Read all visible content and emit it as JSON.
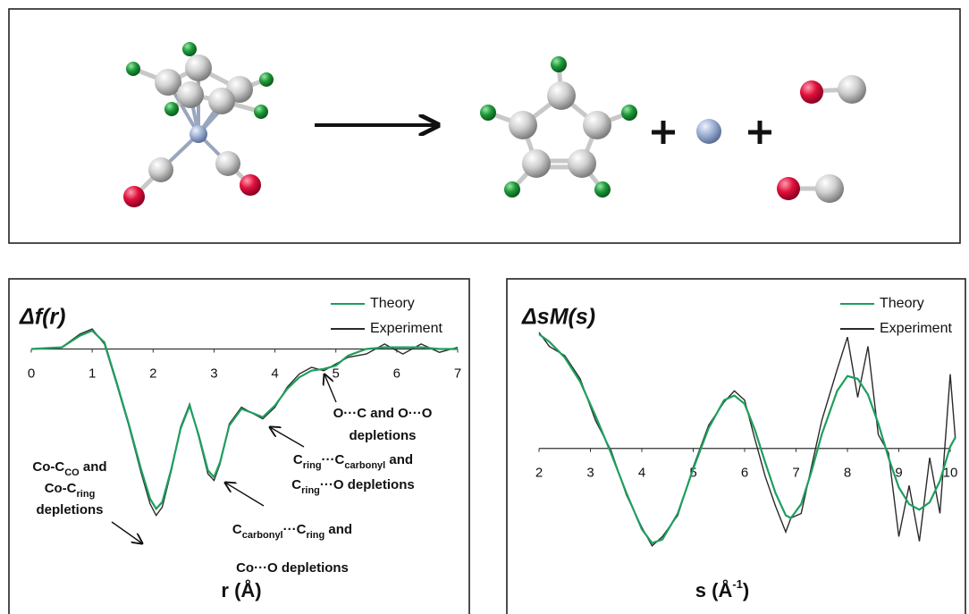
{
  "chart_data": [
    {
      "type": "line",
      "y_label": "Δf(r)",
      "x_label": [
        {
          "text": "r (Å)"
        }
      ],
      "x": [
        0,
        0.5,
        0.8,
        1.0,
        1.2,
        1.4,
        1.6,
        1.8,
        1.95,
        2.05,
        2.15,
        2.3,
        2.45,
        2.6,
        2.75,
        2.9,
        3.0,
        3.1,
        3.25,
        3.45,
        3.6,
        3.8,
        4.0,
        4.2,
        4.4,
        4.6,
        4.8,
        5.0,
        5.2,
        5.5,
        5.8,
        6.1,
        6.4,
        6.7,
        7.0
      ],
      "series": [
        {
          "name": "Theory",
          "color": "#1e9e5e",
          "values": [
            0,
            0.01,
            0.08,
            0.11,
            0.04,
            -0.2,
            -0.45,
            -0.72,
            -0.9,
            -0.96,
            -0.92,
            -0.72,
            -0.48,
            -0.34,
            -0.52,
            -0.73,
            -0.77,
            -0.68,
            -0.46,
            -0.36,
            -0.38,
            -0.41,
            -0.34,
            -0.24,
            -0.17,
            -0.13,
            -0.12,
            -0.1,
            -0.04,
            0.0,
            0.01,
            0.01,
            0.01,
            0.0,
            0.0
          ]
        },
        {
          "name": "Experiment",
          "color": "#2a2a2a",
          "values": [
            0,
            0.01,
            0.09,
            0.12,
            0.03,
            -0.21,
            -0.46,
            -0.74,
            -0.93,
            -1.0,
            -0.95,
            -0.73,
            -0.47,
            -0.33,
            -0.53,
            -0.75,
            -0.79,
            -0.69,
            -0.45,
            -0.35,
            -0.38,
            -0.42,
            -0.35,
            -0.23,
            -0.15,
            -0.11,
            -0.13,
            -0.09,
            -0.05,
            -0.03,
            0.03,
            -0.03,
            0.03,
            -0.02,
            0.01
          ]
        }
      ],
      "xlim": [
        0,
        7
      ],
      "xticks": [
        0,
        1,
        2,
        3,
        4,
        5,
        6,
        7
      ],
      "ylim": [
        -1.05,
        0.4
      ],
      "legend": "top-right",
      "annotations": [
        [
          [
            {
              "text": "Co-C"
            },
            {
              "sub": "CO"
            },
            {
              "text": " and"
            }
          ],
          [
            {
              "text": "Co-C"
            },
            {
              "sub": "ring"
            }
          ],
          [
            {
              "text": "depletions"
            }
          ]
        ],
        [
          [
            {
              "text": "C"
            },
            {
              "sub": "carbonyl"
            },
            {
              "text": "···C"
            },
            {
              "sub": "ring"
            },
            {
              "text": " and"
            }
          ],
          [
            {
              "text": "Co···O depletions"
            }
          ]
        ],
        [
          [
            {
              "text": "C"
            },
            {
              "sub": "ring"
            },
            {
              "text": "···C"
            },
            {
              "sub": "carbonyl"
            },
            {
              "text": " and"
            }
          ],
          [
            {
              "text": "C"
            },
            {
              "sub": "ring"
            },
            {
              "text": "···O depletions"
            }
          ]
        ],
        [
          [
            {
              "text": "O···C and O···O"
            }
          ],
          [
            {
              "text": "depletions"
            }
          ]
        ]
      ]
    },
    {
      "type": "line",
      "y_label": "ΔsM(s)",
      "x_label": [
        {
          "text": "s (Å"
        },
        {
          "sup": "-1"
        },
        {
          "text": ")"
        }
      ],
      "x": [
        2,
        2.2,
        2.5,
        2.8,
        3.1,
        3.4,
        3.7,
        4.0,
        4.2,
        4.4,
        4.7,
        5.0,
        5.3,
        5.6,
        5.8,
        6.0,
        6.2,
        6.4,
        6.6,
        6.8,
        6.9,
        7.1,
        7.3,
        7.5,
        7.8,
        8.0,
        8.2,
        8.4,
        8.6,
        8.8,
        9.0,
        9.2,
        9.4,
        9.6,
        9.8,
        10.0,
        10.1
      ],
      "series": [
        {
          "name": "Theory",
          "color": "#1e9e5e",
          "values": [
            1.23,
            1.15,
            0.98,
            0.72,
            0.35,
            -0.05,
            -0.48,
            -0.87,
            -1.02,
            -0.98,
            -0.7,
            -0.22,
            0.22,
            0.52,
            0.57,
            0.48,
            0.2,
            -0.15,
            -0.48,
            -0.72,
            -0.75,
            -0.6,
            -0.25,
            0.15,
            0.62,
            0.78,
            0.75,
            0.58,
            0.27,
            -0.1,
            -0.42,
            -0.6,
            -0.66,
            -0.58,
            -0.35,
            0.02,
            0.12
          ]
        },
        {
          "name": "Experiment",
          "color": "#2a2a2a",
          "values": [
            1.25,
            1.1,
            1.0,
            0.75,
            0.3,
            -0.02,
            -0.5,
            -0.85,
            -1.05,
            -0.95,
            -0.72,
            -0.2,
            0.25,
            0.5,
            0.62,
            0.52,
            0.1,
            -0.3,
            -0.62,
            -0.9,
            -0.75,
            -0.7,
            -0.2,
            0.3,
            0.85,
            1.2,
            0.55,
            1.1,
            0.15,
            -0.05,
            -0.95,
            -0.4,
            -1.0,
            -0.1,
            -0.7,
            0.8,
            0.1
          ]
        }
      ],
      "xlim": [
        2,
        10
      ],
      "xticks": [
        2,
        3,
        4,
        5,
        6,
        7,
        8,
        9,
        10
      ],
      "ylim": [
        -1.1,
        1.5
      ],
      "legend": "top-right",
      "annotations": []
    }
  ]
}
